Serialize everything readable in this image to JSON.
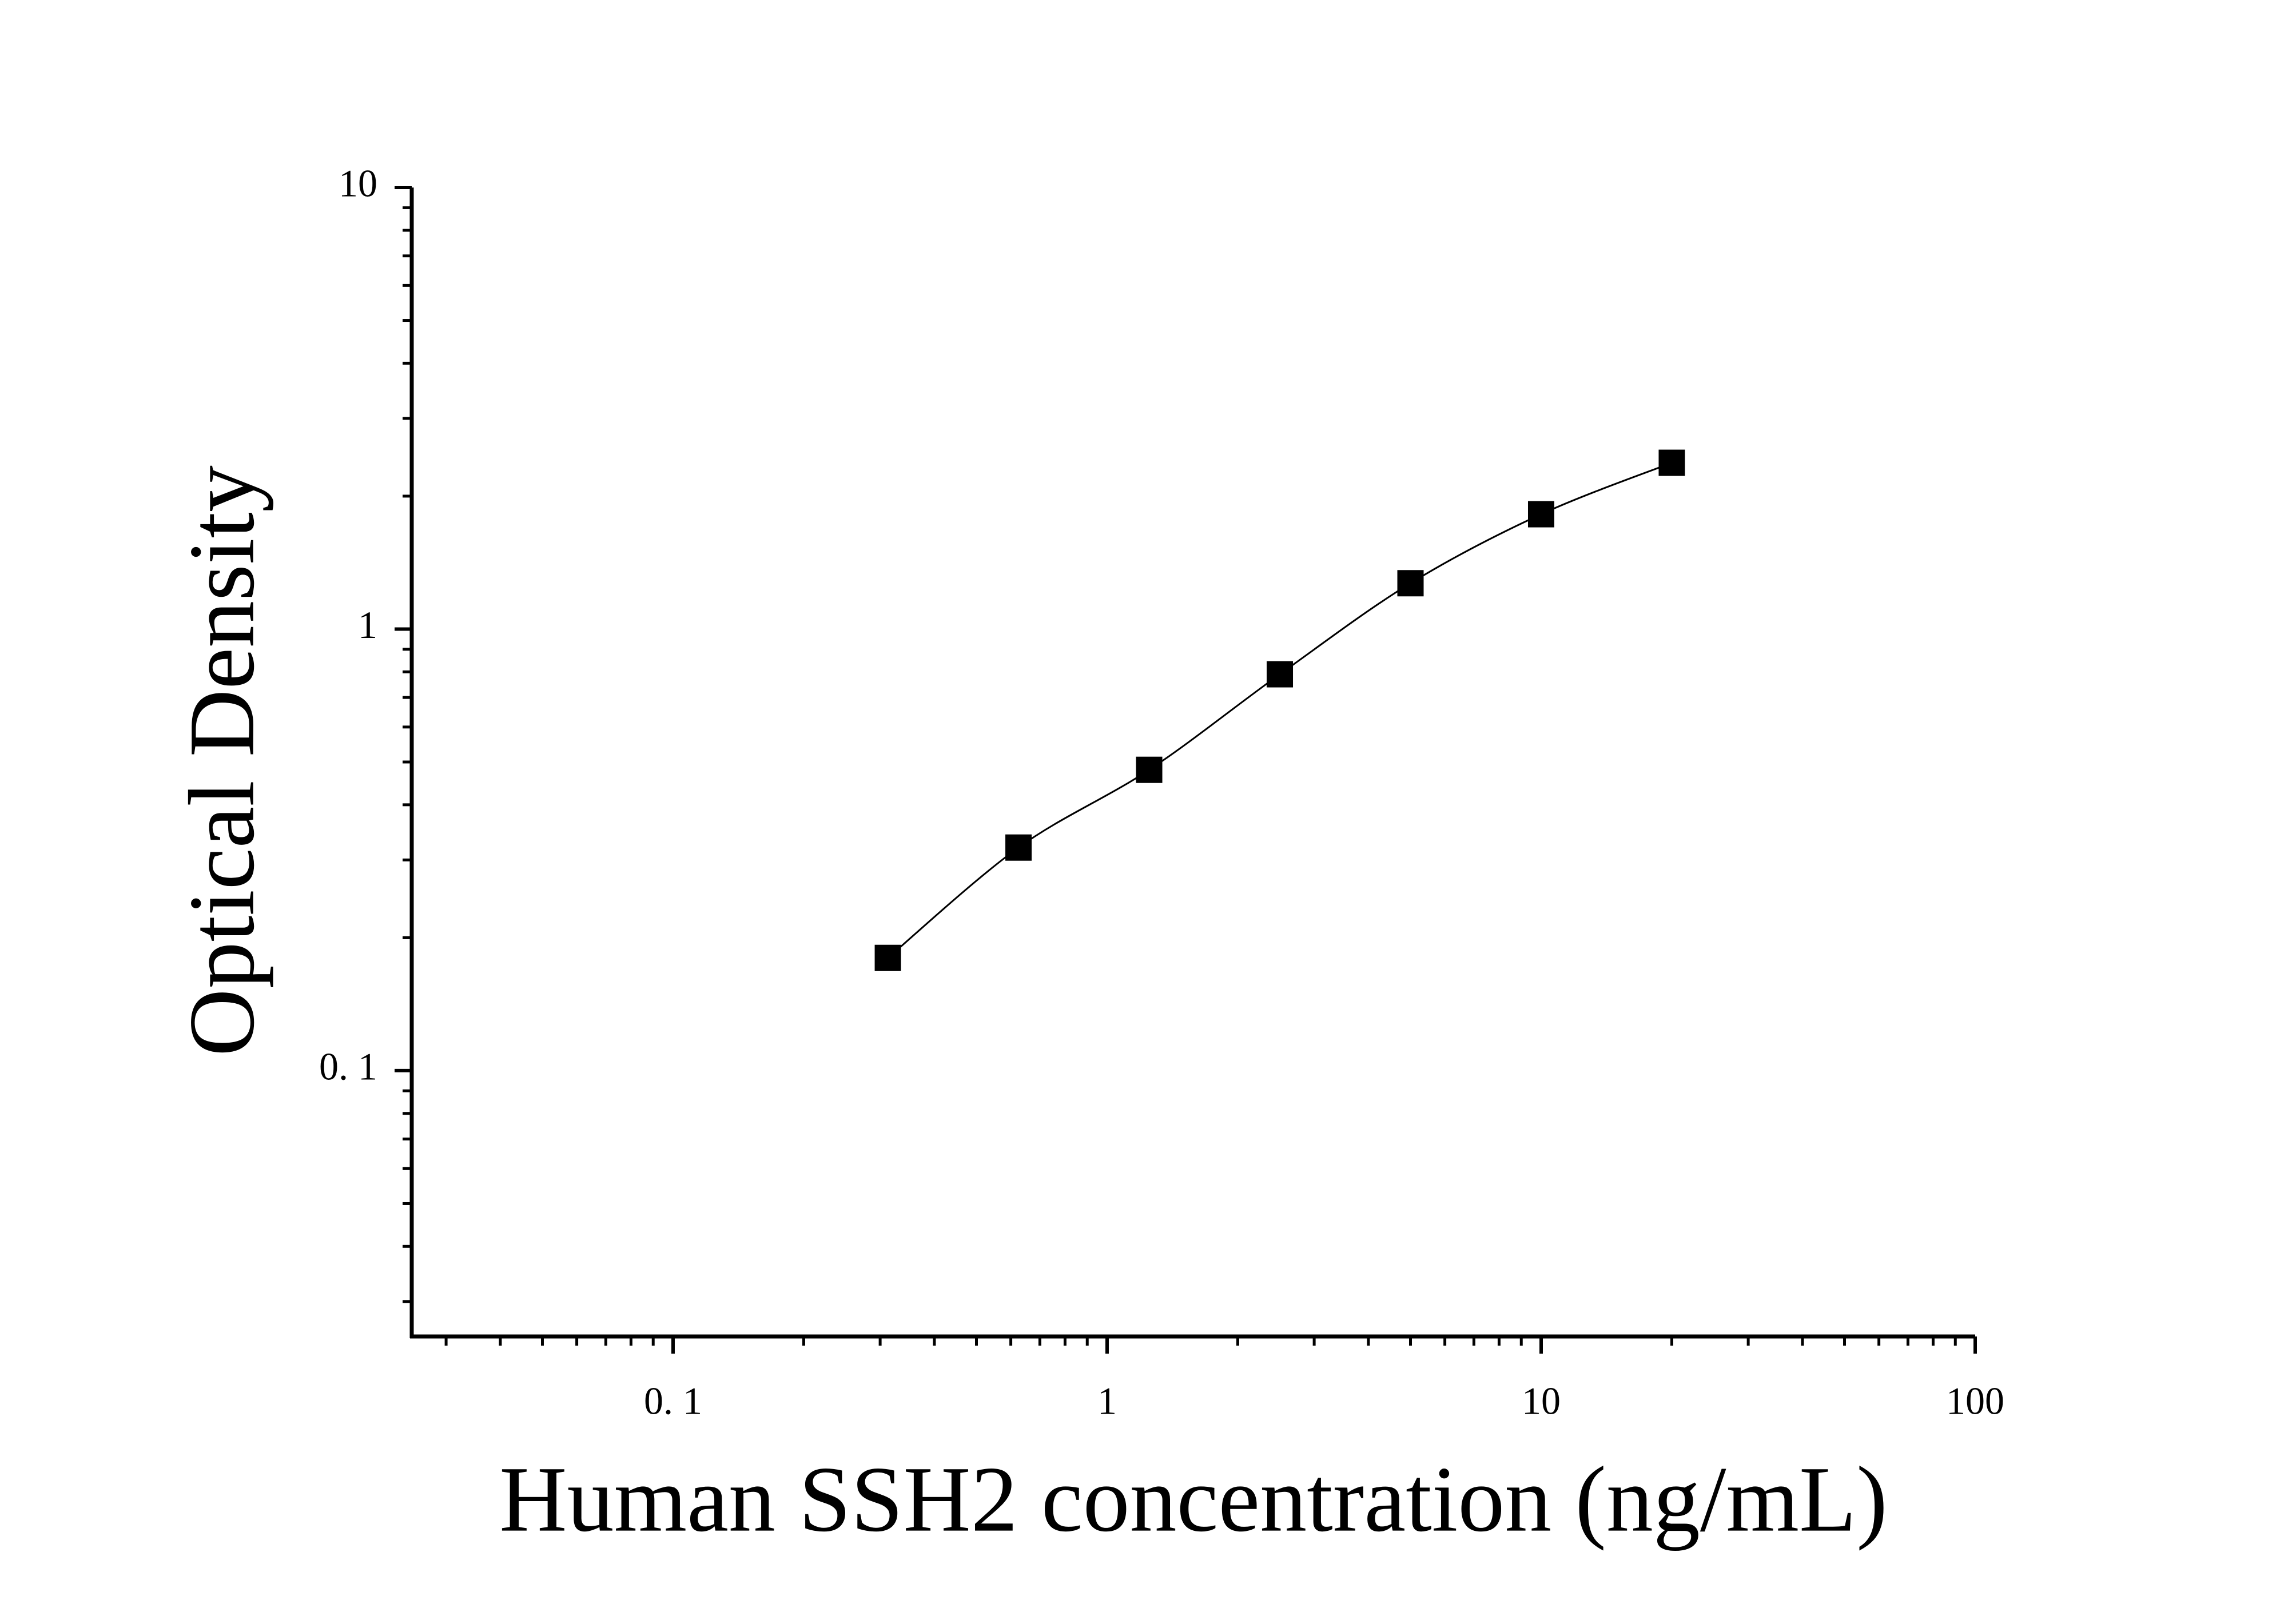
{
  "chart_data": {
    "type": "scatter",
    "x_label": "Human SSH2 concentration (ng/mL)",
    "y_label": "Optical Density",
    "x": [
      0.3125,
      0.625,
      1.25,
      2.5,
      5,
      10,
      20
    ],
    "values": [
      0.18,
      0.32,
      0.48,
      0.79,
      1.27,
      1.82,
      2.38
    ],
    "color": "#000000",
    "fit_line": true,
    "x_log": true,
    "y_log": true,
    "xlim": [
      0.025,
      100
    ],
    "ylim": [
      0.025,
      10
    ],
    "xticks": [
      {
        "value": 0.1,
        "label": "0. 1"
      },
      1,
      10,
      100
    ],
    "yticks": [
      {
        "value": 0.1,
        "label": "0. 1"
      },
      1,
      10
    ],
    "grid": false
  }
}
